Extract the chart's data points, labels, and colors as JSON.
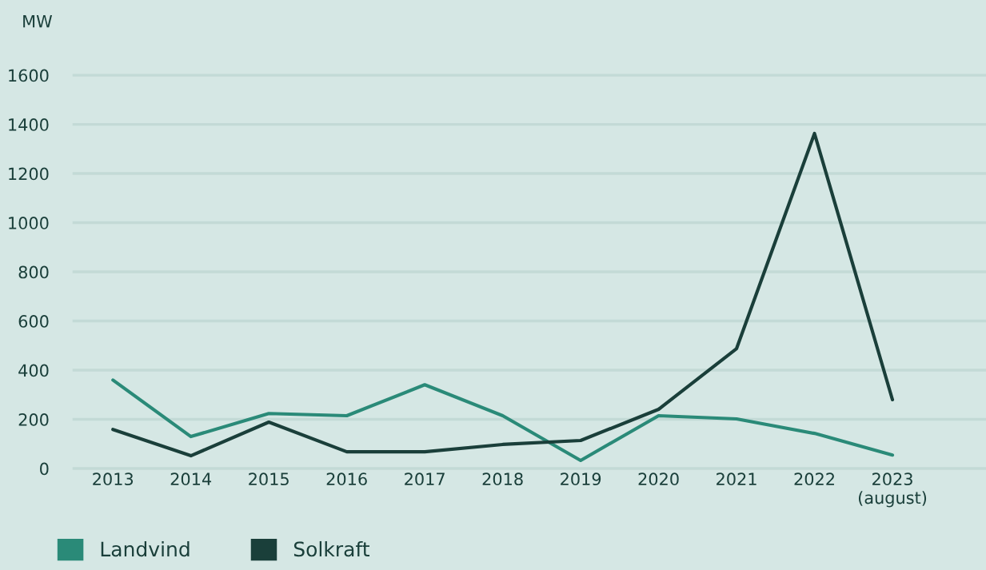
{
  "chart_data": {
    "type": "line",
    "ylabel": "MW",
    "categories": [
      "2013",
      "2014",
      "2015",
      "2016",
      "2017",
      "2018",
      "2019",
      "2020",
      "2021",
      "2022",
      "2023\n(august)"
    ],
    "series": [
      {
        "name": "Landvind",
        "color": "#2a8a78",
        "values": [
          360,
          130,
          224,
          215,
          341,
          215,
          33,
          215,
          202,
          143,
          55
        ]
      },
      {
        "name": "Solkraft",
        "color": "#1a3f3a",
        "values": [
          159,
          52,
          189,
          68,
          68,
          98,
          114,
          241,
          488,
          1363,
          280
        ]
      }
    ],
    "ylim": [
      0,
      1600
    ],
    "yticks": [
      0,
      200,
      400,
      600,
      800,
      1000,
      1200,
      1400,
      1600
    ],
    "grid": "y",
    "legend": "bottom left",
    "marker": "none",
    "line_style": "solid"
  }
}
